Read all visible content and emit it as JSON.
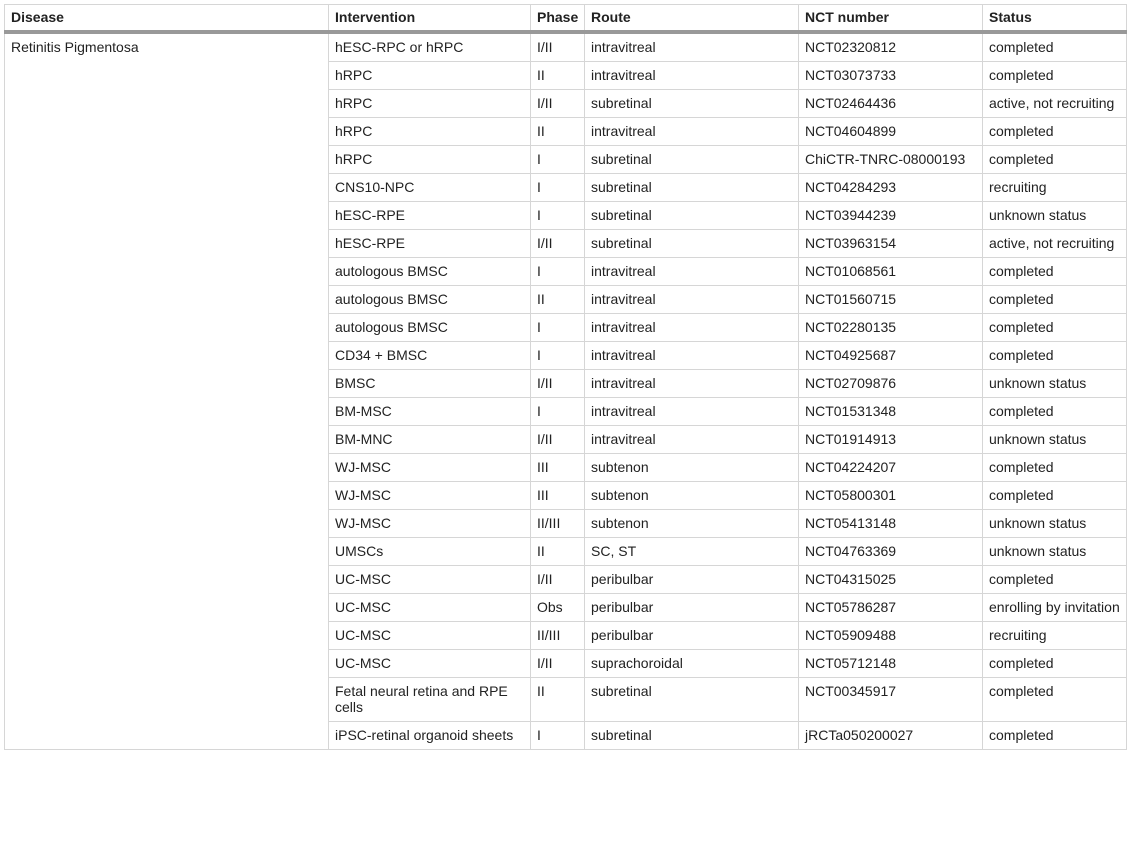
{
  "table": {
    "headers": [
      "Disease",
      "Intervention",
      "Phase",
      "Route",
      "NCT number",
      "Status"
    ],
    "disease": "Retinitis Pigmentosa",
    "rows": [
      [
        "hESC-RPC or hRPC",
        "I/II",
        "intravitreal",
        "NCT02320812",
        "completed"
      ],
      [
        "hRPC",
        "II",
        "intravitreal",
        "NCT03073733",
        "completed"
      ],
      [
        "hRPC",
        "I/II",
        "subretinal",
        "NCT02464436",
        "active, not recruiting"
      ],
      [
        "hRPC",
        "II",
        "intravitreal",
        "NCT04604899",
        "completed"
      ],
      [
        "hRPC",
        "I",
        "subretinal",
        "ChiCTR-TNRC-08000193",
        "completed"
      ],
      [
        "CNS10-NPC",
        "I",
        "subretinal",
        "NCT04284293",
        "recruiting"
      ],
      [
        "hESC-RPE",
        "I",
        "subretinal",
        "NCT03944239",
        "unknown status"
      ],
      [
        "hESC-RPE",
        "I/II",
        "subretinal",
        "NCT03963154",
        "active, not recruiting"
      ],
      [
        "autologous BMSC",
        "I",
        "intravitreal",
        "NCT01068561",
        "completed"
      ],
      [
        "autologous BMSC",
        "II",
        "intravitreal",
        "NCT01560715",
        "completed"
      ],
      [
        "autologous BMSC",
        "I",
        "intravitreal",
        "NCT02280135",
        "completed"
      ],
      [
        "CD34 + BMSC",
        "I",
        "intravitreal",
        "NCT04925687",
        "completed"
      ],
      [
        "BMSC",
        "I/II",
        "intravitreal",
        "NCT02709876",
        "unknown status"
      ],
      [
        "BM-MSC",
        "I",
        "intravitreal",
        "NCT01531348",
        "completed"
      ],
      [
        "BM-MNC",
        "I/II",
        "intravitreal",
        "NCT01914913",
        "unknown status"
      ],
      [
        "WJ-MSC",
        "III",
        "subtenon",
        "NCT04224207",
        "completed"
      ],
      [
        "WJ-MSC",
        "III",
        "subtenon",
        "NCT05800301",
        "completed"
      ],
      [
        "WJ-MSC",
        "II/III",
        "subtenon",
        "NCT05413148",
        "unknown status"
      ],
      [
        "UMSCs",
        "II",
        "SC, ST",
        "NCT04763369",
        "unknown status"
      ],
      [
        "UC-MSC",
        "I/II",
        "peribulbar",
        "NCT04315025",
        "completed"
      ],
      [
        "UC-MSC",
        "Obs",
        "peribulbar",
        "NCT05786287",
        "enrolling by invitation"
      ],
      [
        "UC-MSC",
        "II/III",
        "peribulbar",
        "NCT05909488",
        "recruiting"
      ],
      [
        "UC-MSC",
        "I/II",
        "suprachoroidal",
        "NCT05712148",
        "completed"
      ],
      [
        "Fetal neural retina and RPE cells",
        "II",
        "subretinal",
        "NCT00345917",
        "completed"
      ],
      [
        "iPSC-retinal organoid sheets",
        "I",
        "subretinal",
        "jRCTa050200027",
        "completed"
      ]
    ]
  }
}
